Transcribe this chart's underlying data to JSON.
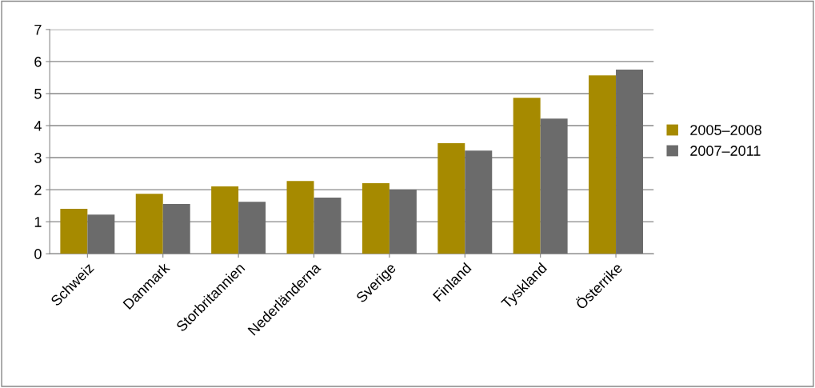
{
  "chart_data": {
    "type": "bar",
    "categories": [
      "Schweiz",
      "Danmark",
      "Storbritannien",
      "Nederländerna",
      "Sverige",
      "Finland",
      "Tyskland",
      "Österrike"
    ],
    "series": [
      {
        "name": "2005–2008",
        "color": "#a68a00",
        "values": [
          1.4,
          1.87,
          2.1,
          2.27,
          2.2,
          3.45,
          4.87,
          5.57
        ]
      },
      {
        "name": "2007–2011",
        "color": "#6b6b6b",
        "values": [
          1.22,
          1.55,
          1.62,
          1.75,
          2.0,
          3.22,
          4.22,
          5.75
        ]
      }
    ],
    "ylim": [
      0,
      7
    ],
    "yticks": [
      0,
      1,
      2,
      3,
      4,
      5,
      6,
      7
    ],
    "grid": "y",
    "legend": "right"
  }
}
